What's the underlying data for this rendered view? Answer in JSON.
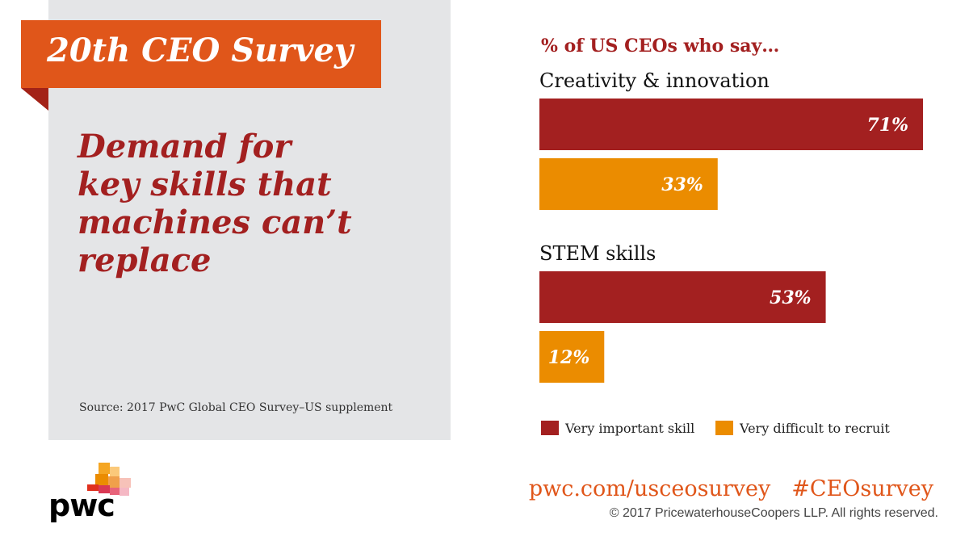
{
  "banner": {
    "title": "20th CEO Survey"
  },
  "headline": {
    "lines": [
      "Demand for",
      "key skills that",
      "machines can’t",
      "replace"
    ]
  },
  "source": "Source: 2017 PwC Global CEO Survey–US supplement",
  "logo": {
    "word": "pwc"
  },
  "footer": {
    "url": "pwc.com/usceosurvey",
    "hashtag": "#CEOsurvey",
    "copyright": "© 2017 PricewaterhouseCoopers LLP.  All rights reserved."
  },
  "colors": {
    "important": "#a32020",
    "difficult": "#eb8c00",
    "accent": "#e0561a"
  },
  "chart_data": {
    "type": "bar",
    "orientation": "horizontal",
    "title": "% of US CEOs who say…",
    "categories": [
      "Creativity & innovation",
      "STEM skills"
    ],
    "series": [
      {
        "name": "Very important skill",
        "values": [
          71,
          53
        ],
        "color": "#a32020"
      },
      {
        "name": "Very difficult to recruit",
        "values": [
          33,
          12
        ],
        "color": "#eb8c00"
      }
    ],
    "value_suffix": "%",
    "xlim": [
      0,
      71
    ],
    "grid": false,
    "legend": "bottom"
  }
}
